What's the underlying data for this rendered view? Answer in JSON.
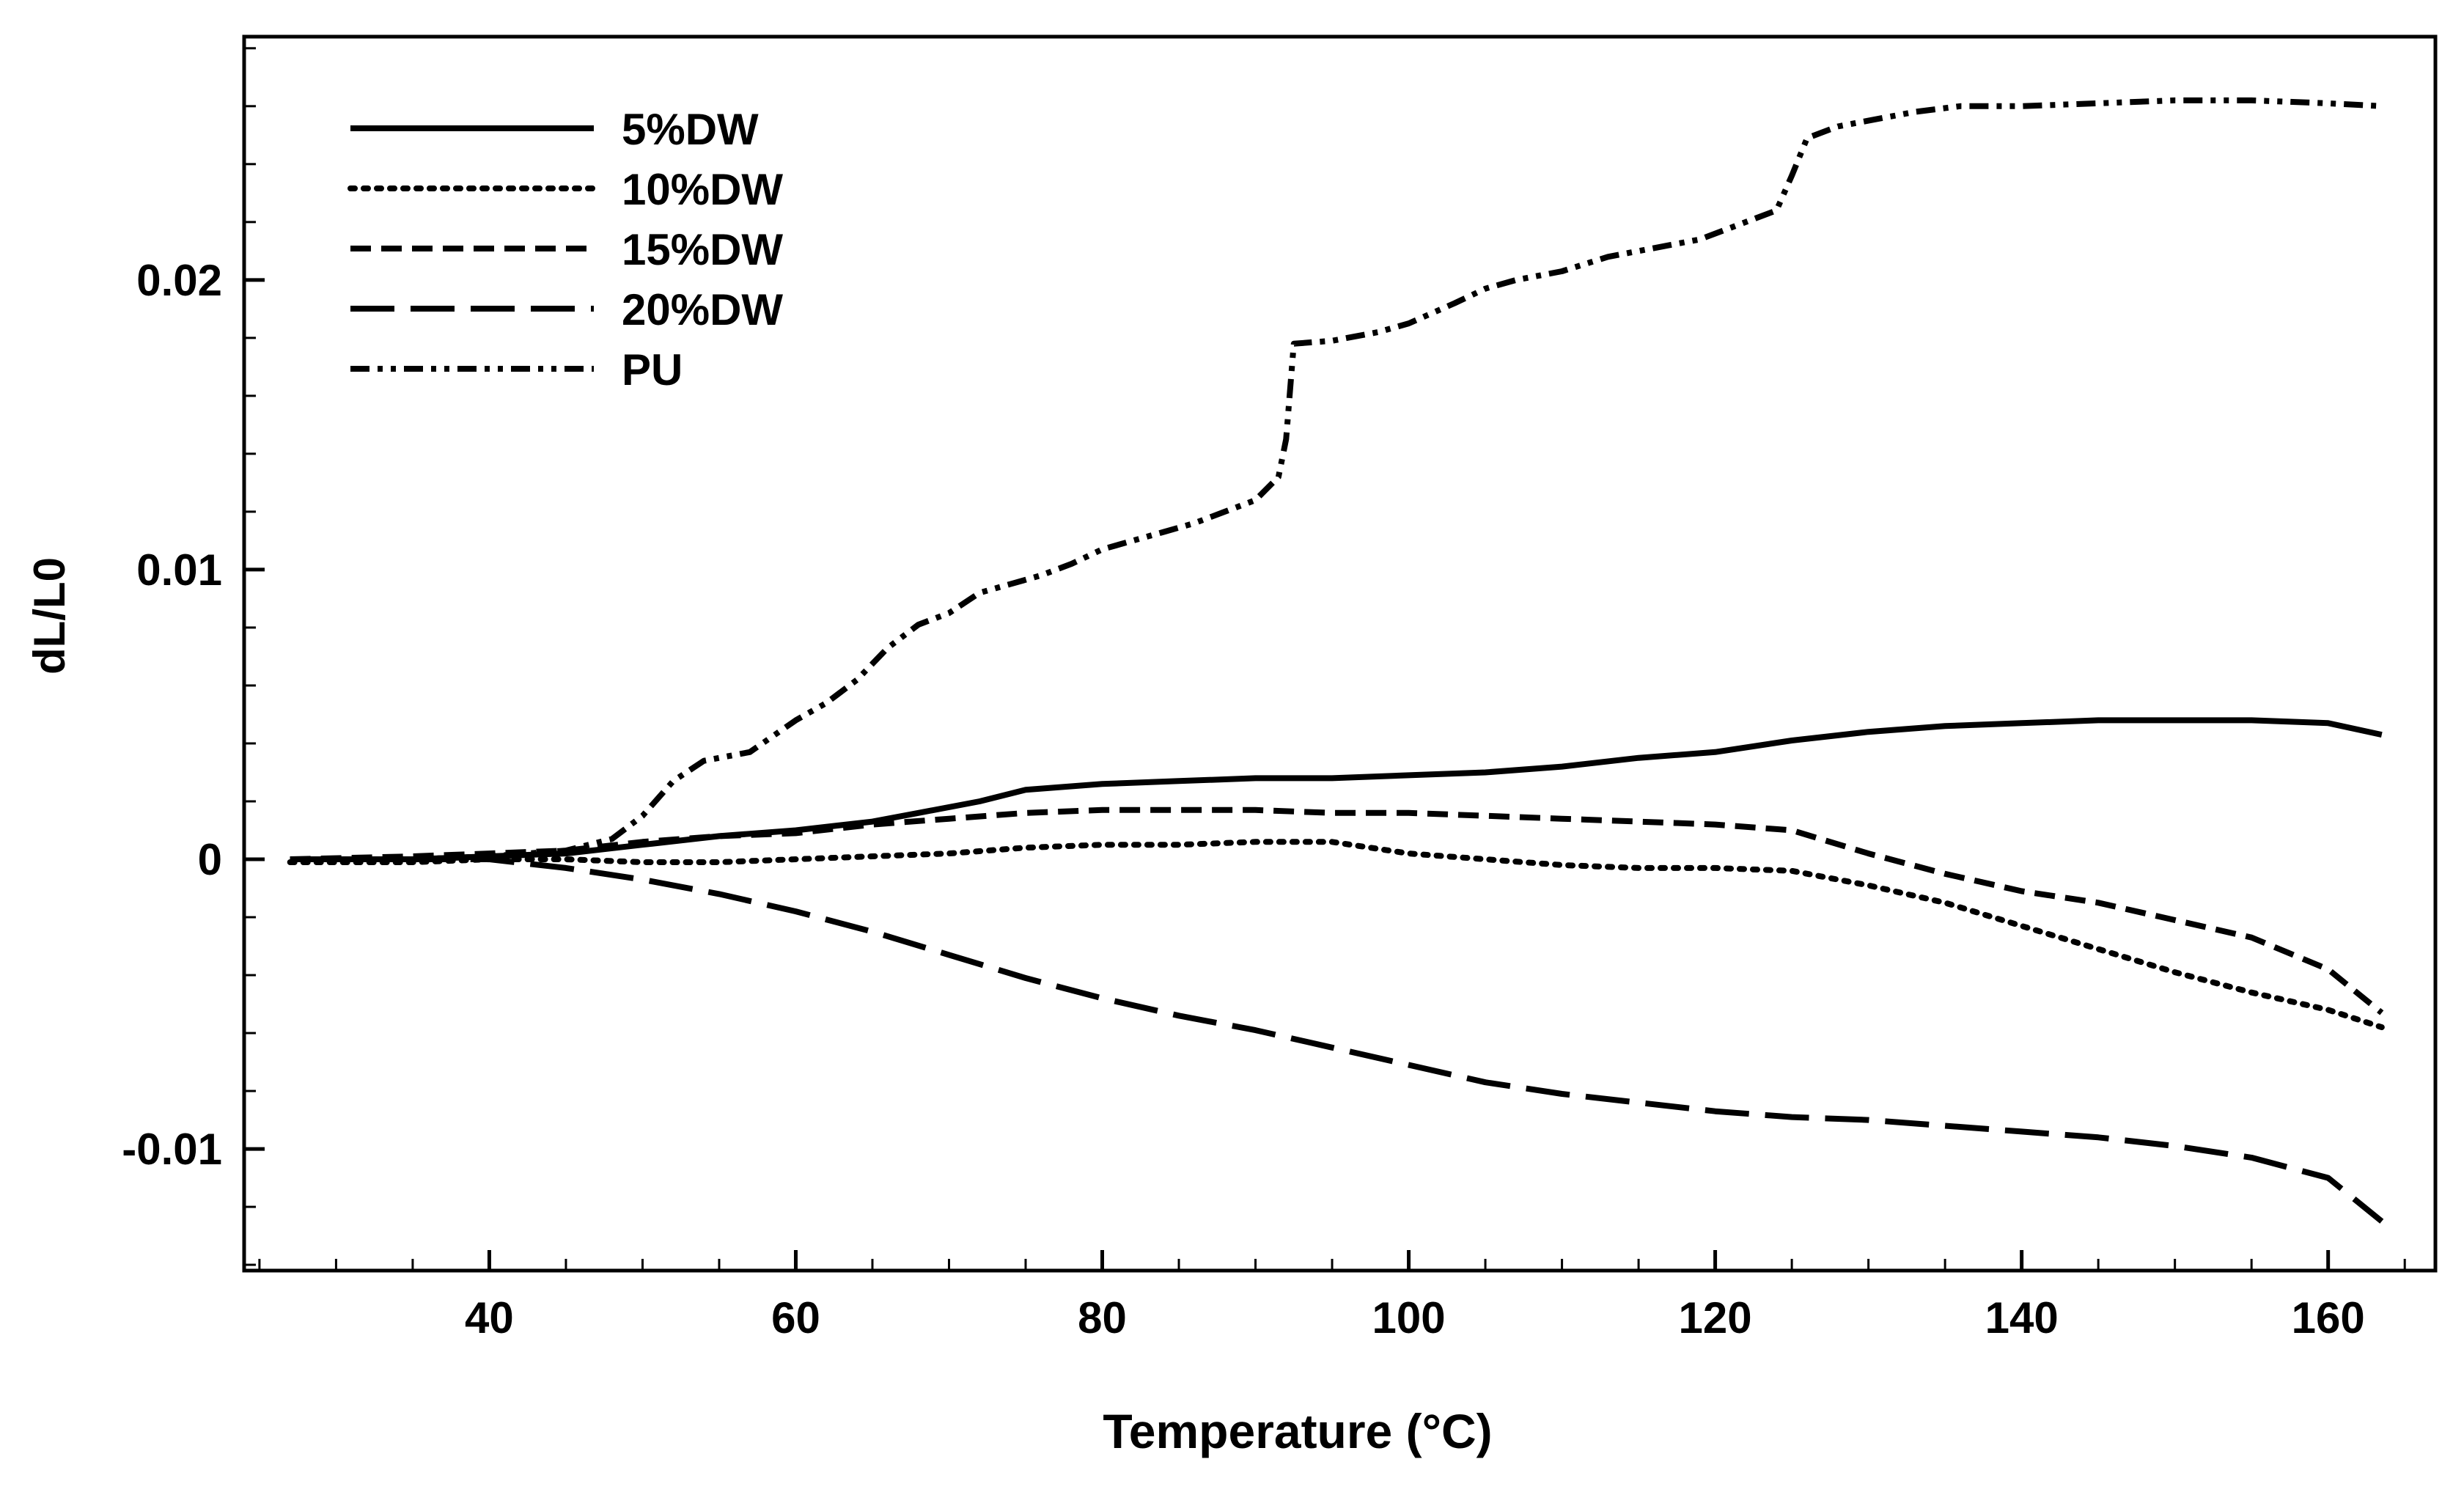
{
  "chart_data": {
    "type": "line",
    "title": "",
    "xlabel": "Temperature (°C)",
    "ylabel": "dL/L0",
    "xlim": [
      24,
      167
    ],
    "ylim": [
      -0.0142,
      0.0284
    ],
    "x_ticks": [
      40,
      60,
      80,
      100,
      120,
      140,
      160
    ],
    "x_tick_labels": [
      "40",
      "60",
      "80",
      "100",
      "120",
      "140",
      "160"
    ],
    "y_ticks": [
      -0.01,
      0,
      0.01,
      0.02
    ],
    "y_tick_labels": [
      "-0.01",
      "0",
      "0.01",
      "0.02"
    ],
    "grid": false,
    "legend_position": "top-left",
    "series": [
      {
        "name": "5%DW",
        "style": "solid",
        "color": "#000000",
        "x": [
          27,
          35,
          40,
          45,
          50,
          55,
          60,
          65,
          68,
          72,
          75,
          80,
          85,
          90,
          95,
          100,
          105,
          110,
          115,
          120,
          125,
          130,
          135,
          140,
          145,
          150,
          155,
          160,
          163.5
        ],
        "y": [
          0.0,
          0.0,
          0.0001,
          0.0002,
          0.0005,
          0.0008,
          0.001,
          0.0013,
          0.0016,
          0.002,
          0.0024,
          0.0026,
          0.0027,
          0.0028,
          0.0028,
          0.0029,
          0.003,
          0.0032,
          0.0035,
          0.0037,
          0.0041,
          0.0044,
          0.0046,
          0.0047,
          0.0048,
          0.0048,
          0.0048,
          0.0047,
          0.0043
        ]
      },
      {
        "name": "10%DW",
        "style": "dotted",
        "color": "#000000",
        "x": [
          27,
          35,
          40,
          45,
          50,
          55,
          60,
          65,
          70,
          75,
          80,
          85,
          90,
          95,
          100,
          105,
          110,
          115,
          120,
          125,
          130,
          135,
          140,
          145,
          150,
          155,
          160,
          163.5
        ],
        "y": [
          -0.0001,
          -0.0001,
          0.0,
          0.0,
          -0.0001,
          -0.0001,
          0.0,
          0.0001,
          0.0002,
          0.0004,
          0.0005,
          0.0005,
          0.0006,
          0.0006,
          0.0002,
          0.0,
          -0.0002,
          -0.0003,
          -0.0003,
          -0.0004,
          -0.0009,
          -0.0015,
          -0.0023,
          -0.0031,
          -0.0039,
          -0.0046,
          -0.0052,
          -0.0058
        ]
      },
      {
        "name": "15%DW",
        "style": "dashed",
        "color": "#000000",
        "x": [
          27,
          35,
          40,
          45,
          50,
          55,
          60,
          65,
          70,
          75,
          80,
          85,
          90,
          95,
          100,
          105,
          110,
          115,
          120,
          125,
          130,
          135,
          140,
          145,
          150,
          155,
          160,
          163.5
        ],
        "y": [
          0.0,
          0.0001,
          0.0002,
          0.0003,
          0.0006,
          0.0008,
          0.0009,
          0.0012,
          0.0014,
          0.0016,
          0.0017,
          0.0017,
          0.0017,
          0.0016,
          0.0016,
          0.0015,
          0.0014,
          0.0013,
          0.0012,
          0.001,
          0.0002,
          -0.0005,
          -0.0011,
          -0.0015,
          -0.0021,
          -0.0027,
          -0.0038,
          -0.0053
        ]
      },
      {
        "name": "20%DW",
        "style": "long-dash",
        "color": "#000000",
        "x": [
          27,
          35,
          40,
          45,
          50,
          55,
          60,
          65,
          70,
          75,
          80,
          85,
          90,
          95,
          100,
          105,
          110,
          115,
          120,
          125,
          130,
          135,
          140,
          145,
          150,
          155,
          160,
          163.5
        ],
        "y": [
          0.0,
          0.0,
          0.0,
          -0.0003,
          -0.0007,
          -0.0012,
          -0.0018,
          -0.0025,
          -0.0033,
          -0.0041,
          -0.0048,
          -0.0054,
          -0.0059,
          -0.0065,
          -0.0071,
          -0.0077,
          -0.0081,
          -0.0084,
          -0.0087,
          -0.0089,
          -0.009,
          -0.0092,
          -0.0094,
          -0.0096,
          -0.0099,
          -0.0103,
          -0.011,
          -0.0125
        ]
      },
      {
        "name": "PU",
        "style": "dash-dot-dot",
        "color": "#000000",
        "x": [
          27,
          35,
          40,
          45,
          48,
          50,
          52,
          54,
          57,
          60,
          62,
          64,
          66,
          68,
          70,
          72,
          74,
          76,
          78,
          80,
          82,
          84,
          86,
          88,
          90,
          91.5,
          92,
          92.5,
          95,
          98,
          100,
          103,
          105,
          107,
          110,
          113,
          116,
          119,
          121,
          124,
          125,
          126,
          128,
          130,
          133,
          136,
          140,
          145,
          150,
          155,
          160,
          163.5
        ],
        "y": [
          0.0,
          0.0,
          0.0001,
          0.0003,
          0.0007,
          0.0015,
          0.0027,
          0.0034,
          0.0037,
          0.0048,
          0.0054,
          0.0062,
          0.0073,
          0.0081,
          0.0085,
          0.0092,
          0.0095,
          0.0098,
          0.0102,
          0.0107,
          0.011,
          0.0113,
          0.0116,
          0.012,
          0.0124,
          0.0132,
          0.0145,
          0.0178,
          0.0179,
          0.0182,
          0.0185,
          0.0192,
          0.0197,
          0.02,
          0.0203,
          0.0208,
          0.0211,
          0.0214,
          0.0218,
          0.0224,
          0.0236,
          0.0249,
          0.0253,
          0.0255,
          0.0258,
          0.026,
          0.026,
          0.0261,
          0.0262,
          0.0262,
          0.0261,
          0.026
        ]
      }
    ]
  }
}
